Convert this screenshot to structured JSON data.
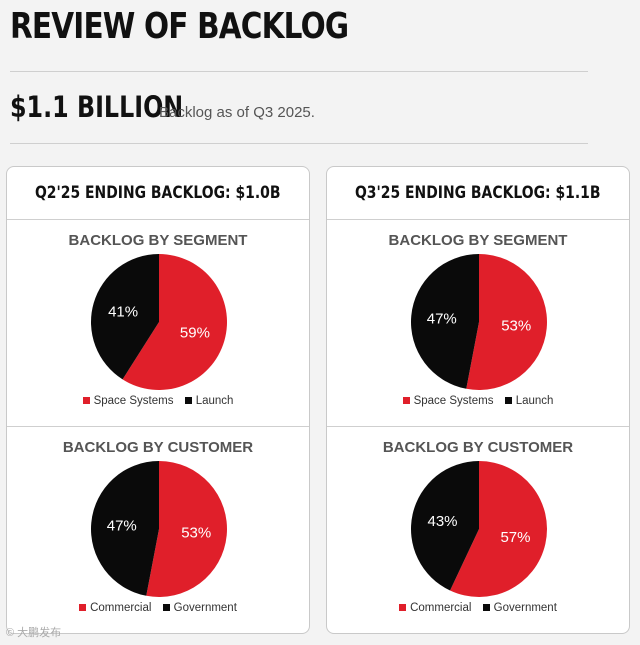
{
  "page": {
    "title": "REVIEW OF BACKLOG",
    "headline": "$1.1 BILLION",
    "headline_sub": "Backlog as of Q3 2025."
  },
  "colors": {
    "red": "#e01f2a",
    "black": "#0a0a0a"
  },
  "watermark": "© 大鹏发布",
  "panels": [
    {
      "header": "Q2'25 ENDING BACKLOG: $1.0B",
      "sections": [
        {
          "title": "BACKLOG BY SEGMENT",
          "legend": [
            "Space Systems",
            "Launch"
          ]
        },
        {
          "title": "BACKLOG BY CUSTOMER",
          "legend": [
            "Commercial",
            "Government"
          ]
        }
      ]
    },
    {
      "header": "Q3'25 ENDING BACKLOG: $1.1B",
      "sections": [
        {
          "title": "BACKLOG BY SEGMENT",
          "legend": [
            "Space Systems",
            "Launch"
          ]
        },
        {
          "title": "BACKLOG BY CUSTOMER",
          "legend": [
            "Commercial",
            "Government"
          ]
        }
      ]
    }
  ],
  "chart_data": [
    {
      "type": "pie",
      "title": "BACKLOG BY SEGMENT",
      "period": "Q2'25",
      "labels": [
        "Space Systems",
        "Launch"
      ],
      "values": [
        59,
        41
      ],
      "colors": [
        "#e01f2a",
        "#0a0a0a"
      ]
    },
    {
      "type": "pie",
      "title": "BACKLOG BY CUSTOMER",
      "period": "Q2'25",
      "labels": [
        "Commercial",
        "Government"
      ],
      "values": [
        53,
        47
      ],
      "colors": [
        "#e01f2a",
        "#0a0a0a"
      ]
    },
    {
      "type": "pie",
      "title": "BACKLOG BY SEGMENT",
      "period": "Q3'25",
      "labels": [
        "Space Systems",
        "Launch"
      ],
      "values": [
        53,
        47
      ],
      "colors": [
        "#e01f2a",
        "#0a0a0a"
      ]
    },
    {
      "type": "pie",
      "title": "BACKLOG BY CUSTOMER",
      "period": "Q3'25",
      "labels": [
        "Commercial",
        "Government"
      ],
      "values": [
        57,
        43
      ],
      "colors": [
        "#e01f2a",
        "#0a0a0a"
      ]
    }
  ]
}
